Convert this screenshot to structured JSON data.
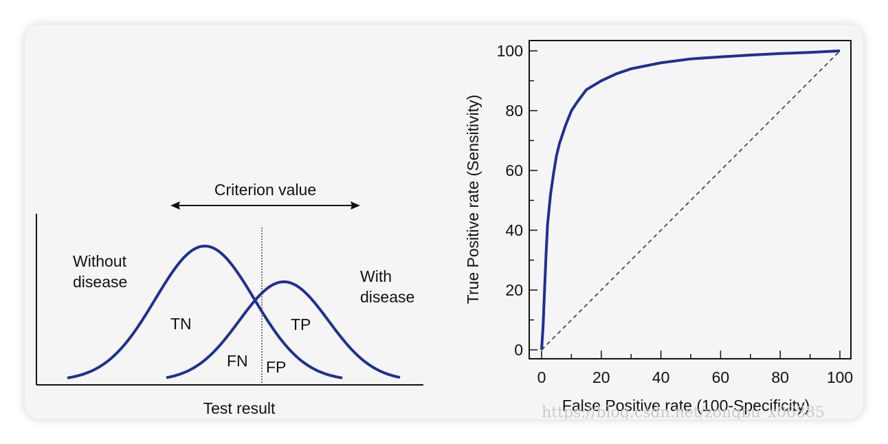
{
  "chart_data": [
    {
      "type": "area",
      "title": "",
      "xlabel": "Test result",
      "ylabel": "",
      "annotation_top": "Criterion value",
      "series": [
        {
          "name": "Without disease",
          "shape": "normal-curve"
        },
        {
          "name": "With disease",
          "shape": "normal-curve"
        }
      ],
      "region_labels": [
        "TN",
        "FN",
        "FP",
        "TP"
      ],
      "criterion_line": "dotted vertical",
      "criterion_direction": "double-headed arrow",
      "colors": {
        "curve": "#1f2f95",
        "axis": "#111111"
      }
    },
    {
      "type": "line",
      "title": "",
      "xlabel": "False Positive rate (100-Specificity)",
      "ylabel": "True Positive rate (Sensitivity)",
      "xlim": [
        0,
        100
      ],
      "ylim": [
        0,
        100
      ],
      "x_ticks": [
        "0",
        "20",
        "40",
        "60",
        "80",
        "100"
      ],
      "y_ticks": [
        "0",
        "20",
        "40",
        "60",
        "80",
        "100"
      ],
      "grid": false,
      "series": [
        {
          "name": "",
          "color": "#1f2f95",
          "points": [
            [
              0,
              0
            ],
            [
              0.5,
              8
            ],
            [
              1,
              20
            ],
            [
              1.5,
              32
            ],
            [
              2,
              42
            ],
            [
              3,
              52
            ],
            [
              4,
              59
            ],
            [
              5,
              65
            ],
            [
              6,
              69
            ],
            [
              8,
              75
            ],
            [
              10,
              80
            ],
            [
              12,
              83
            ],
            [
              15,
              87
            ],
            [
              20,
              90
            ],
            [
              25,
              92.3
            ],
            [
              30,
              94
            ],
            [
              40,
              96
            ],
            [
              50,
              97.3
            ],
            [
              60,
              98
            ],
            [
              70,
              98.6
            ],
            [
              80,
              99.1
            ],
            [
              90,
              99.5
            ],
            [
              100,
              100
            ]
          ]
        },
        {
          "name": "",
          "color": "#333333",
          "style": "dashed",
          "points": [
            [
              0,
              0
            ],
            [
              100,
              100
            ]
          ]
        }
      ]
    }
  ],
  "watermark": "https://blog.csdn.net/zongbu_x06885"
}
